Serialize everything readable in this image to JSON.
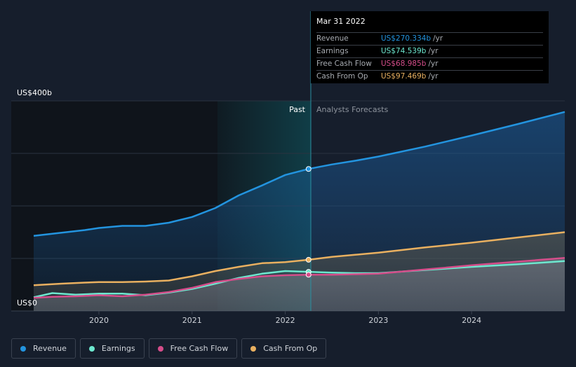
{
  "chart_data": {
    "type": "line",
    "y_axis": {
      "top_label": "US$400b",
      "bottom_label": "US$0",
      "ylim": [
        0,
        400
      ]
    },
    "x_ticks": [
      "2020",
      "2021",
      "2022",
      "2023",
      "2024"
    ],
    "xlim": [
      2019.3,
      2025.0
    ],
    "divider_x": 2022.25,
    "past_label": "Past",
    "forecast_label": "Analysts Forecasts",
    "tooltip": {
      "date": "Mar 31 2022",
      "rows": [
        {
          "label": "Revenue",
          "value": "US$270.334b",
          "unit": "/yr",
          "color": "#2394df"
        },
        {
          "label": "Earnings",
          "value": "US$74.539b",
          "unit": "/yr",
          "color": "#6de8cf"
        },
        {
          "label": "Free Cash Flow",
          "value": "US$68.985b",
          "unit": "/yr",
          "color": "#d54d8a"
        },
        {
          "label": "Cash From Op",
          "value": "US$97.469b",
          "unit": "/yr",
          "color": "#e9b060"
        }
      ]
    },
    "series": [
      {
        "name": "Revenue",
        "color": "#2394df",
        "points": [
          [
            2019.3,
            143
          ],
          [
            2019.6,
            149
          ],
          [
            2019.85,
            154
          ],
          [
            2020.0,
            158
          ],
          [
            2020.25,
            162
          ],
          [
            2020.5,
            162
          ],
          [
            2020.75,
            168
          ],
          [
            2021.0,
            179
          ],
          [
            2021.25,
            196
          ],
          [
            2021.5,
            220
          ],
          [
            2021.75,
            239
          ],
          [
            2022.0,
            259
          ],
          [
            2022.25,
            270.334
          ],
          [
            2022.5,
            279
          ],
          [
            2022.75,
            286
          ],
          [
            2023.0,
            294
          ],
          [
            2023.5,
            313
          ],
          [
            2024.0,
            334
          ],
          [
            2024.5,
            356
          ],
          [
            2025.0,
            379
          ]
        ]
      },
      {
        "name": "Earnings",
        "color": "#6de8cf",
        "points": [
          [
            2019.3,
            26
          ],
          [
            2019.5,
            34
          ],
          [
            2019.75,
            31
          ],
          [
            2020.0,
            33
          ],
          [
            2020.25,
            33
          ],
          [
            2020.5,
            30
          ],
          [
            2020.75,
            35
          ],
          [
            2021.0,
            42
          ],
          [
            2021.25,
            52
          ],
          [
            2021.5,
            63
          ],
          [
            2021.75,
            71
          ],
          [
            2022.0,
            76
          ],
          [
            2022.25,
            74.539
          ],
          [
            2022.5,
            73
          ],
          [
            2022.75,
            72
          ],
          [
            2023.0,
            72
          ],
          [
            2023.5,
            78
          ],
          [
            2024.0,
            84
          ],
          [
            2024.5,
            89
          ],
          [
            2025.0,
            95
          ]
        ]
      },
      {
        "name": "Free Cash Flow",
        "color": "#d54d8a",
        "points": [
          [
            2019.3,
            25
          ],
          [
            2019.5,
            27
          ],
          [
            2019.75,
            28
          ],
          [
            2020.0,
            30
          ],
          [
            2020.25,
            28
          ],
          [
            2020.5,
            31
          ],
          [
            2020.75,
            36
          ],
          [
            2021.0,
            44
          ],
          [
            2021.25,
            55
          ],
          [
            2021.5,
            61
          ],
          [
            2021.75,
            66
          ],
          [
            2022.0,
            68
          ],
          [
            2022.25,
            68.985
          ],
          [
            2022.5,
            69
          ],
          [
            2022.75,
            70
          ],
          [
            2023.0,
            71
          ],
          [
            2023.5,
            79
          ],
          [
            2024.0,
            87
          ],
          [
            2024.5,
            94
          ],
          [
            2025.0,
            101
          ]
        ]
      },
      {
        "name": "Cash From Op",
        "color": "#e9b060",
        "points": [
          [
            2019.3,
            49
          ],
          [
            2019.6,
            52
          ],
          [
            2019.85,
            54
          ],
          [
            2020.0,
            55
          ],
          [
            2020.25,
            55
          ],
          [
            2020.5,
            56
          ],
          [
            2020.75,
            58
          ],
          [
            2021.0,
            66
          ],
          [
            2021.25,
            76
          ],
          [
            2021.5,
            84
          ],
          [
            2021.75,
            91
          ],
          [
            2022.0,
            93
          ],
          [
            2022.25,
            97.469
          ],
          [
            2022.5,
            103
          ],
          [
            2022.75,
            107
          ],
          [
            2023.0,
            111
          ],
          [
            2023.5,
            121
          ],
          [
            2024.0,
            130
          ],
          [
            2024.5,
            140
          ],
          [
            2025.0,
            150
          ]
        ]
      }
    ]
  },
  "legend": {
    "items": [
      {
        "label": "Revenue",
        "color": "#2394df"
      },
      {
        "label": "Earnings",
        "color": "#6de8cf"
      },
      {
        "label": "Free Cash Flow",
        "color": "#d54d8a"
      },
      {
        "label": "Cash From Op",
        "color": "#e9b060"
      }
    ]
  }
}
